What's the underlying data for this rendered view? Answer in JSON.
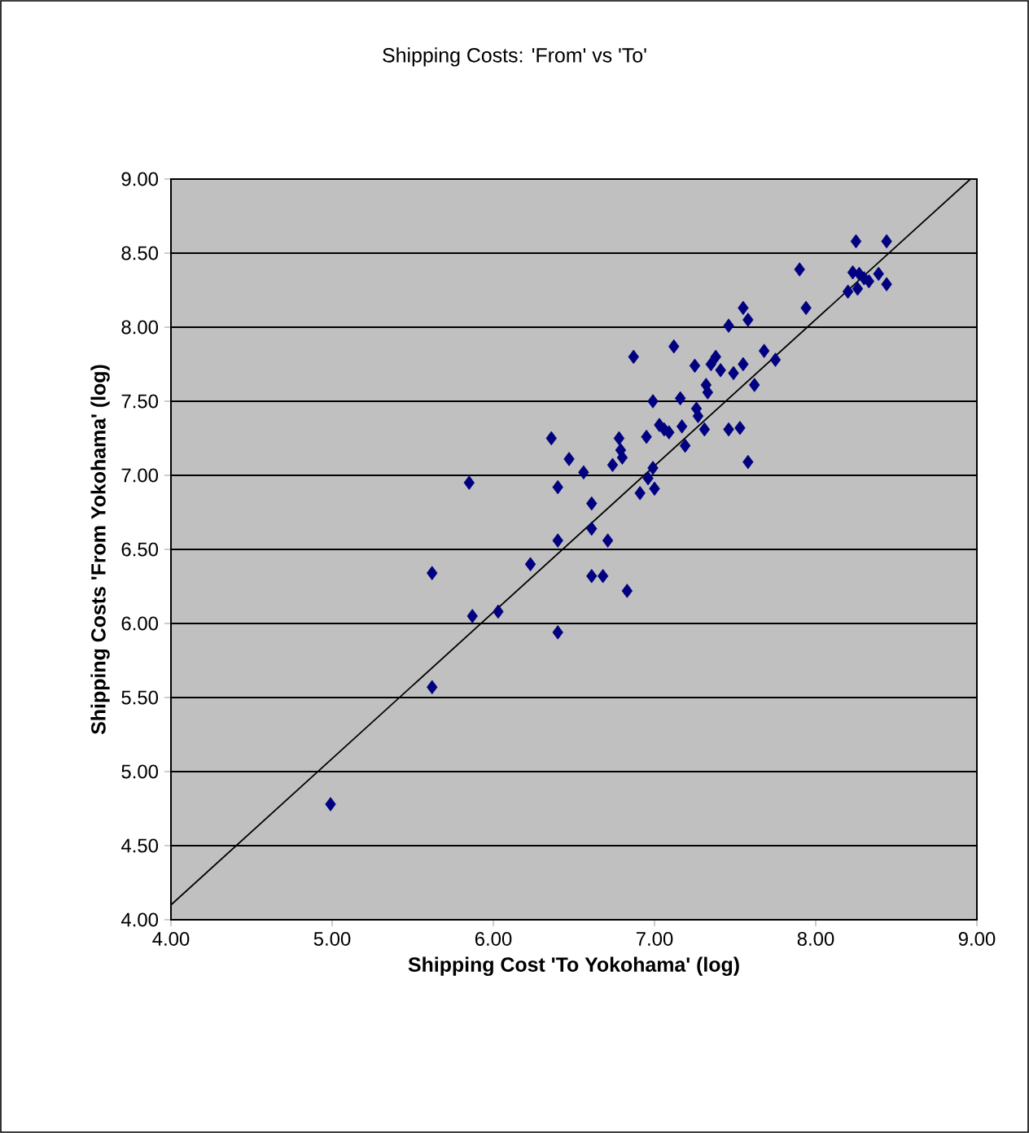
{
  "chart_data": {
    "type": "scatter",
    "title": "Shipping Costs: 'From' vs 'To'",
    "xlabel": "Shipping Cost 'To Yokohama' (log)",
    "ylabel": "Shipping Costs 'From Yokohama' (log)",
    "xlim": [
      4,
      9
    ],
    "ylim": [
      4,
      9
    ],
    "xticks": [
      {
        "value": 4,
        "label": "4.00"
      },
      {
        "value": 5,
        "label": "5.00"
      },
      {
        "value": 6,
        "label": "6.00"
      },
      {
        "value": 7,
        "label": "7.00"
      },
      {
        "value": 8,
        "label": "8.00"
      },
      {
        "value": 9,
        "label": "9.00"
      }
    ],
    "yticks": [
      {
        "value": 4,
        "label": "4.00"
      },
      {
        "value": 4.5,
        "label": "4.50"
      },
      {
        "value": 5,
        "label": "5.00"
      },
      {
        "value": 5.5,
        "label": "5.50"
      },
      {
        "value": 6,
        "label": "6.00"
      },
      {
        "value": 6.5,
        "label": "6.50"
      },
      {
        "value": 7,
        "label": "7.00"
      },
      {
        "value": 7.5,
        "label": "7.50"
      },
      {
        "value": 8,
        "label": "8.00"
      },
      {
        "value": 8.5,
        "label": "8.50"
      },
      {
        "value": 9,
        "label": "9.00"
      }
    ],
    "grid": "y",
    "marker": "diamond",
    "series": [
      {
        "color": "#000080",
        "x": [
          4.99,
          5.62,
          5.62,
          5.85,
          5.87,
          6.03,
          6.23,
          6.36,
          6.4,
          6.4,
          6.4,
          6.47,
          6.56,
          6.61,
          6.61,
          6.61,
          6.68,
          6.71,
          6.74,
          6.78,
          6.79,
          6.8,
          6.83,
          6.87,
          6.91,
          6.95,
          6.96,
          6.99,
          6.99,
          7.0,
          7.03,
          7.06,
          7.09,
          7.12,
          7.16,
          7.17,
          7.19,
          7.25,
          7.26,
          7.27,
          7.31,
          7.32,
          7.33,
          7.35,
          7.38,
          7.41,
          7.46,
          7.46,
          7.49,
          7.53,
          7.55,
          7.55,
          7.58,
          7.58,
          7.62,
          7.68,
          7.75,
          7.9,
          7.94,
          8.2,
          8.23,
          8.25,
          8.26,
          8.27,
          8.3,
          8.33,
          8.39,
          8.44,
          8.44
        ],
        "values": [
          4.78,
          5.57,
          6.34,
          6.95,
          6.05,
          6.08,
          6.4,
          7.25,
          6.92,
          6.56,
          5.94,
          7.11,
          7.02,
          6.81,
          6.64,
          6.32,
          6.32,
          6.56,
          7.07,
          7.25,
          7.17,
          7.12,
          6.22,
          7.8,
          6.88,
          7.26,
          6.98,
          7.5,
          7.05,
          6.91,
          7.34,
          7.31,
          7.29,
          7.87,
          7.52,
          7.33,
          7.2,
          7.74,
          7.45,
          7.4,
          7.31,
          7.61,
          7.56,
          7.75,
          7.8,
          7.71,
          7.31,
          8.01,
          7.69,
          7.32,
          7.75,
          8.13,
          8.05,
          7.09,
          7.61,
          7.84,
          7.78,
          8.39,
          8.13,
          8.24,
          8.37,
          8.58,
          8.26,
          8.36,
          8.33,
          8.31,
          8.36,
          8.58,
          8.29
        ]
      },
      {
        "type": "line",
        "color": "#000000",
        "marker": "none",
        "x": [
          4,
          8.96
        ],
        "values": [
          4.1,
          9.0
        ]
      }
    ]
  }
}
